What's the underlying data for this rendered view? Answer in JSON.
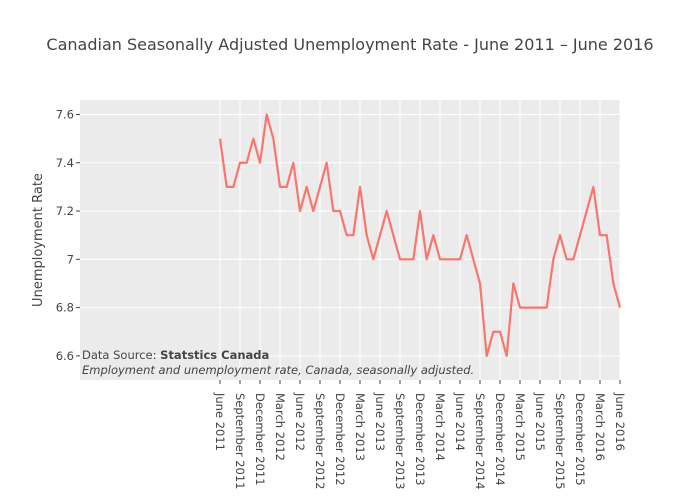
{
  "chart_data": {
    "type": "line",
    "title": "Canadian Seasonally Adjusted Unemployment Rate - June 2011 – June 2016",
    "xlabel": "",
    "ylabel": "Unemployment Rate",
    "x_start": "2011-06",
    "x_step": "1 month",
    "values": [
      7.5,
      7.3,
      7.3,
      7.4,
      7.4,
      7.5,
      7.4,
      7.6,
      7.5,
      7.3,
      7.3,
      7.4,
      7.2,
      7.3,
      7.2,
      7.3,
      7.4,
      7.2,
      7.2,
      7.1,
      7.1,
      7.3,
      7.1,
      7.0,
      7.1,
      7.2,
      7.1,
      7.0,
      7.0,
      7.0,
      7.2,
      7.0,
      7.1,
      7.0,
      7.0,
      7.0,
      7.0,
      7.1,
      7.0,
      6.9,
      6.6,
      6.7,
      6.7,
      6.6,
      6.9,
      6.8,
      6.8,
      6.8,
      6.8,
      6.8,
      7.0,
      7.1,
      7.0,
      7.0,
      7.1,
      7.2,
      7.3,
      7.1,
      7.1,
      6.9,
      6.8
    ],
    "xlim": [
      "2009-09",
      "2016-06"
    ],
    "ylim": [
      6.5,
      7.66
    ],
    "y_ticks": [
      6.6,
      6.8,
      7,
      7.2,
      7.4,
      7.6
    ],
    "y_tick_labels": [
      "6.6",
      "6.8",
      "7",
      "7.2",
      "7.4",
      "7.6"
    ],
    "x_tick_labels": [
      "June 2011",
      "September 2011",
      "December 2011",
      "March 2012",
      "June 2012",
      "September 2012",
      "December 2012",
      "March 2013",
      "June 2013",
      "September 2013",
      "December 2013",
      "March 2014",
      "June 2014",
      "September 2014",
      "December 2014",
      "March 2015",
      "June 2015",
      "September 2015",
      "December 2015",
      "March 2016",
      "June 2016"
    ],
    "grid": true,
    "legend": "none",
    "line_color": "#f8766d",
    "plot_background": "#ebebeb",
    "annotation": {
      "source_prefix": "Data Source: ",
      "source_name": "Statstics Canada",
      "description": "Employment and unemployment rate, Canada, seasonally adjusted."
    }
  }
}
